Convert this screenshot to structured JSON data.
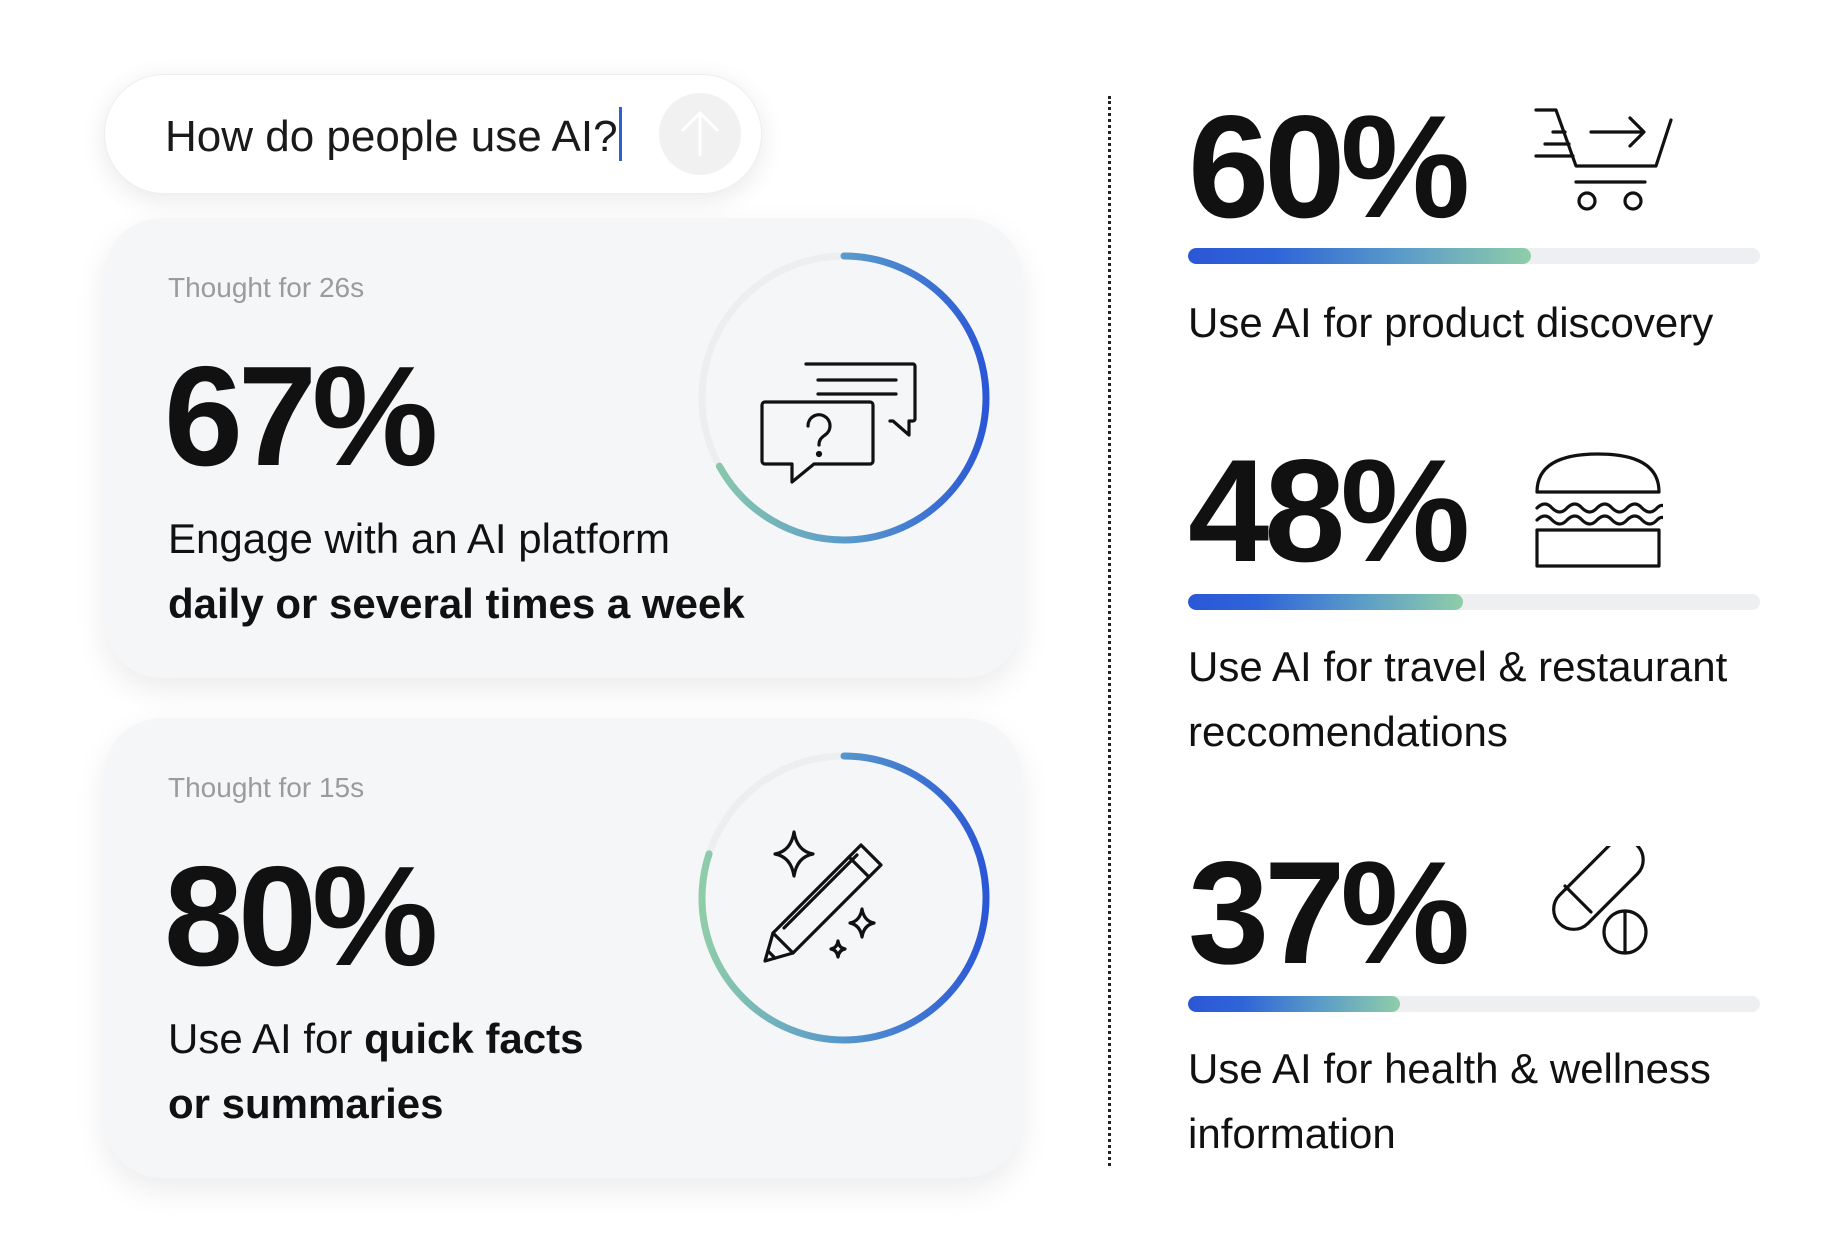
{
  "search": {
    "query": "How do people use AI?"
  },
  "cards": [
    {
      "thought": "Thought for 26s",
      "stat": "67%",
      "value_percent": 67,
      "line1": "Engage with an AI platform",
      "line2_bold": "daily or several times a week",
      "icon": "chat-question-icon"
    },
    {
      "thought": "Thought for 15s",
      "stat": "80%",
      "value_percent": 80,
      "line1_normal": "Use AI for ",
      "line1_bold": "quick facts",
      "line2_bold": "or summaries",
      "icon": "pencil-sparkle-icon"
    }
  ],
  "stats": [
    {
      "value": "60%",
      "percent": 60,
      "label_lines": [
        "Use AI for product discovery"
      ],
      "icon": "shopping-cart-icon"
    },
    {
      "value": "48%",
      "percent": 48,
      "label_lines": [
        "Use AI for travel & restaurant",
        "reccomendations"
      ],
      "icon": "burger-icon"
    },
    {
      "value": "37%",
      "percent": 37,
      "label_lines": [
        "Use AI for health & wellness",
        "information"
      ],
      "icon": "pill-icon"
    }
  ],
  "colors": {
    "accent_blue": "#2b57d6",
    "accent_green": "#8fcda9",
    "card_bg": "#f5f6f8",
    "track": "#eeeff1"
  }
}
